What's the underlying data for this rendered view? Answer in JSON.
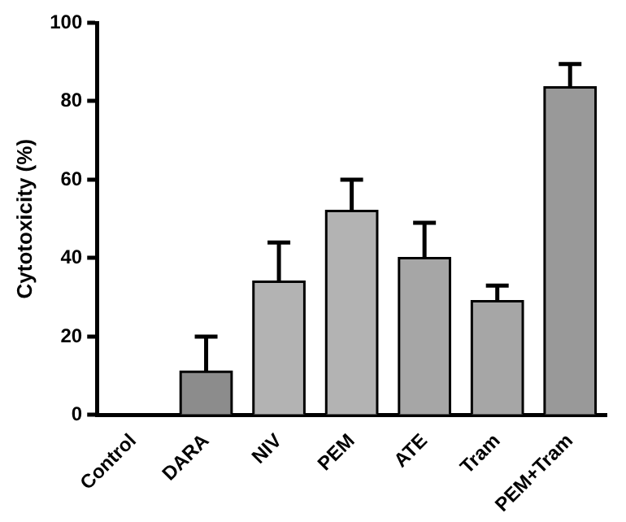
{
  "chart_data": {
    "type": "bar",
    "ylabel": "Cytotoxicity (%)",
    "categories": [
      "Control",
      "DARA",
      "NIV",
      "PEM",
      "ATE",
      "Tram",
      "PEM+Tram"
    ],
    "values": [
      0,
      11,
      34,
      52,
      40,
      29,
      83.5
    ],
    "errors": [
      null,
      [
        11,
        20
      ],
      [
        34,
        44
      ],
      [
        52,
        60
      ],
      [
        40,
        49
      ],
      [
        29,
        33
      ],
      [
        83.5,
        89.5
      ]
    ],
    "colors": [
      "#ffffff",
      "#8c8c8c",
      "#b3b3b3",
      "#b3b3b3",
      "#a6a6a6",
      "#a6a6a6",
      "#999999"
    ],
    "ylim": [
      0,
      100
    ],
    "yticks": [
      0,
      20,
      40,
      60,
      80,
      100
    ],
    "grid": false,
    "legend": false
  }
}
